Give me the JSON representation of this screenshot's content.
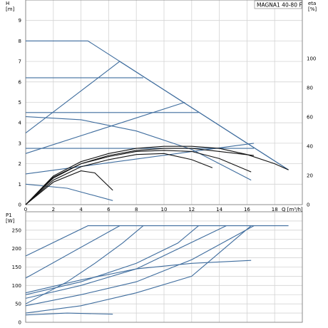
{
  "chart_data": [
    {
      "type": "line",
      "title": "MAGNA1 40-80 F",
      "xlabel": "Q [m³/h]",
      "ylabel": "H\n[m]",
      "ylabel_right": "eta\n[%]",
      "xlim": [
        0,
        20
      ],
      "ylim": [
        0,
        10
      ],
      "ylim_right": [
        0,
        140
      ],
      "x_ticks": [
        0,
        2,
        4,
        6,
        8,
        10,
        12,
        14,
        16,
        18
      ],
      "y_ticks": [
        0,
        1,
        2,
        3,
        4,
        5,
        6,
        7,
        8,
        9
      ],
      "y_ticks_right": [
        0,
        20,
        40,
        60,
        80,
        100
      ],
      "grid": true,
      "colors": {
        "pump_curves": "#3f6d9e",
        "efficiency_curves": "#111111"
      },
      "series": [
        {
          "x": [
            0,
            4.5,
            19
          ],
          "y": [
            8,
            8,
            1.7
          ]
        },
        {
          "x": [
            0,
            6.8,
            19
          ],
          "y": [
            3.5,
            7.0,
            1.7
          ]
        },
        {
          "x": [
            0,
            8.5
          ],
          "y": [
            6.2,
            6.2
          ]
        },
        {
          "x": [
            0,
            12.5
          ],
          "y": [
            4.5,
            4.5
          ]
        },
        {
          "x": [
            0,
            11.5
          ],
          "y": [
            2.5,
            5.0
          ]
        },
        {
          "x": [
            0,
            16.5
          ],
          "y": [
            2.75,
            2.75
          ]
        },
        {
          "x": [
            0,
            16.5
          ],
          "y": [
            1.5,
            3.0
          ]
        },
        {
          "x": [
            0,
            4,
            8,
            12,
            16.3
          ],
          "y": [
            4.3,
            4.15,
            3.6,
            2.7,
            1.2
          ]
        },
        {
          "x": [
            0,
            3,
            6.3
          ],
          "y": [
            1.0,
            0.8,
            0.2
          ]
        },
        {
          "x": [
            0,
            2,
            4,
            6,
            8,
            10,
            12,
            14,
            16,
            18,
            19
          ],
          "y": [
            0,
            1.4,
            2.1,
            2.5,
            2.75,
            2.85,
            2.85,
            2.75,
            2.45,
            2.0,
            1.7
          ]
        },
        {
          "x": [
            0,
            2,
            4,
            6,
            8,
            10,
            12,
            14,
            16.5
          ],
          "y": [
            0,
            1.35,
            2.0,
            2.4,
            2.65,
            2.75,
            2.75,
            2.6,
            2.4
          ]
        },
        {
          "x": [
            0,
            2,
            4,
            6,
            8,
            10,
            12,
            14,
            16.3
          ],
          "y": [
            0,
            1.3,
            2.0,
            2.35,
            2.6,
            2.65,
            2.6,
            2.25,
            1.6
          ]
        },
        {
          "x": [
            0,
            2,
            4,
            6,
            8,
            10,
            12,
            13.5
          ],
          "y": [
            0,
            1.2,
            1.85,
            2.2,
            2.45,
            2.5,
            2.2,
            1.8
          ]
        },
        {
          "x": [
            0,
            2,
            4,
            5,
            6.3
          ],
          "y": [
            0,
            1.1,
            1.65,
            1.55,
            0.7
          ]
        }
      ]
    },
    {
      "type": "line",
      "title": "",
      "xlabel": "",
      "ylabel": "P1\n[W]",
      "xlim": [
        0,
        20
      ],
      "ylim": [
        0,
        300
      ],
      "y_ticks": [
        0,
        50,
        100,
        150,
        200,
        250
      ],
      "grid": true,
      "colors": {
        "power_curves": "#3f6d9e"
      },
      "series": [
        {
          "x": [
            0,
            4.5,
            19
          ],
          "y": [
            180,
            262,
            262
          ]
        },
        {
          "x": [
            0,
            6.8
          ],
          "y": [
            120,
            262
          ]
        },
        {
          "x": [
            0,
            3,
            5,
            7,
            8.5
          ],
          "y": [
            50,
            110,
            160,
            215,
            262
          ]
        },
        {
          "x": [
            0,
            4,
            8,
            11,
            12.5
          ],
          "y": [
            75,
            110,
            160,
            215,
            262
          ]
        },
        {
          "x": [
            0,
            4,
            8,
            14.5
          ],
          "y": [
            65,
            100,
            145,
            262
          ]
        },
        {
          "x": [
            0,
            4,
            8,
            12,
            16.5
          ],
          "y": [
            45,
            75,
            110,
            170,
            262
          ]
        },
        {
          "x": [
            0,
            4,
            8,
            12,
            16.3
          ],
          "y": [
            25,
            45,
            80,
            125,
            262
          ]
        },
        {
          "x": [
            0,
            4,
            8,
            12,
            16.3
          ],
          "y": [
            80,
            115,
            145,
            160,
            168
          ]
        },
        {
          "x": [
            0,
            3,
            6.3
          ],
          "y": [
            20,
            25,
            22
          ]
        }
      ]
    }
  ]
}
